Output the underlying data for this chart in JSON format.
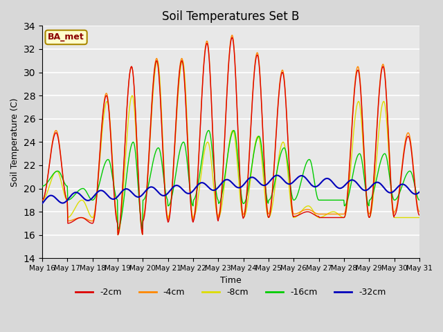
{
  "title": "Soil Temperatures Set B",
  "xlabel": "Time",
  "ylabel": "Soil Temperature (C)",
  "ylim": [
    14,
    34
  ],
  "yticks": [
    14,
    16,
    18,
    20,
    22,
    24,
    26,
    28,
    30,
    32,
    34
  ],
  "plot_bg_color": "#e8e8e8",
  "fig_bg_color": "#d8d8d8",
  "legend_label": "BA_met",
  "series_colors": {
    "-2cm": "#dd0000",
    "-4cm": "#ff8800",
    "-8cm": "#dddd00",
    "-16cm": "#00cc00",
    "-32cm": "#0000bb"
  },
  "x_tick_labels": [
    "May 16",
    "May 17",
    "May 18",
    "May 19",
    "May 20",
    "May 21",
    "May 22",
    "May 23",
    "May 24",
    "May 25",
    "May 26",
    "May 27",
    "May 28",
    "May 29",
    "May 30",
    "May 31"
  ],
  "peak_days": [
    16,
    17,
    18,
    19,
    20,
    21,
    22,
    23,
    24,
    25,
    26,
    27,
    28,
    29,
    30
  ],
  "peaks_2cm": [
    24.8,
    17.5,
    28.0,
    30.5,
    31.0,
    31.0,
    32.5,
    33.0,
    31.5,
    30.0,
    18.0,
    17.5,
    30.2,
    30.5,
    24.5
  ],
  "troughs_2cm": [
    19.0,
    17.0,
    17.0,
    16.0,
    17.2,
    17.1,
    17.2,
    17.4,
    17.5,
    17.5,
    17.6,
    17.5,
    17.5,
    17.5,
    17.7
  ],
  "peaks_4cm": [
    25.0,
    17.5,
    28.2,
    30.5,
    31.2,
    31.2,
    32.7,
    33.2,
    31.7,
    30.2,
    18.2,
    17.8,
    30.5,
    30.7,
    24.8
  ],
  "troughs_4cm": [
    19.0,
    17.2,
    17.2,
    16.2,
    17.5,
    17.3,
    17.5,
    17.7,
    17.8,
    17.8,
    17.8,
    17.8,
    17.8,
    17.8,
    18.0
  ],
  "peaks_8cm": [
    21.5,
    19.0,
    27.5,
    28.0,
    31.0,
    31.0,
    24.0,
    25.0,
    24.5,
    24.0,
    18.5,
    18.0,
    27.5,
    27.5,
    17.5
  ],
  "troughs_8cm": [
    19.0,
    17.5,
    17.5,
    16.0,
    17.5,
    17.5,
    17.5,
    17.5,
    17.5,
    17.5,
    17.5,
    17.5,
    17.5,
    17.5,
    17.5
  ],
  "peaks_16cm": [
    21.5,
    20.0,
    22.5,
    24.0,
    23.5,
    24.0,
    25.0,
    25.0,
    24.5,
    23.5,
    22.5,
    19.0,
    23.0,
    23.0,
    21.5
  ],
  "troughs_16cm": [
    20.2,
    19.0,
    19.0,
    16.5,
    19.0,
    18.5,
    19.0,
    18.7,
    18.7,
    19.0,
    19.0,
    19.0,
    18.5,
    19.0,
    19.0
  ],
  "base_32cm": [
    18.9,
    19.2,
    19.4,
    19.5,
    19.7,
    19.8,
    20.0,
    20.3,
    20.5,
    20.7,
    20.8,
    20.5,
    20.4,
    20.2,
    20.0,
    19.9
  ]
}
